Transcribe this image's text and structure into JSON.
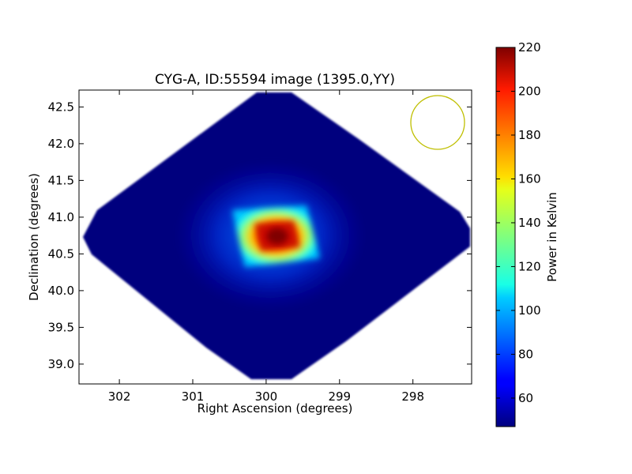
{
  "chart_data": {
    "type": "heatmap",
    "title": "CYG-A, ID:55594 image (1395.0,YY)",
    "xlabel": "Right Ascension (degrees)",
    "ylabel": "Declination (degrees)",
    "xlim": [
      302.55,
      297.2
    ],
    "ylim": [
      38.73,
      42.73
    ],
    "x_inverted": true,
    "xticks": [
      302,
      301,
      300,
      299,
      298
    ],
    "xtick_labels": [
      "302",
      "301",
      "300",
      "299",
      "298"
    ],
    "yticks": [
      39.0,
      39.5,
      40.0,
      40.5,
      41.0,
      41.5,
      42.0,
      42.5
    ],
    "ytick_labels": [
      "39.0",
      "39.5",
      "40.0",
      "40.5",
      "41.0",
      "41.5",
      "42.0",
      "42.5"
    ],
    "colormap": "jet",
    "background_value": 52,
    "source_peak": {
      "ra": 299.9,
      "dec": 40.73,
      "value": 220
    },
    "coverage_region": "diamond",
    "beam_circle": {
      "ra": 297.65,
      "dec": 42.29,
      "color": "#bfbf00"
    },
    "colorbar": {
      "label": "Power in Kelvin",
      "min": 47,
      "max": 220,
      "ticks": [
        60,
        80,
        100,
        120,
        140,
        160,
        180,
        200,
        220
      ],
      "tick_labels": [
        "60",
        "80",
        "100",
        "120",
        "140",
        "160",
        "180",
        "200",
        "220"
      ]
    }
  }
}
